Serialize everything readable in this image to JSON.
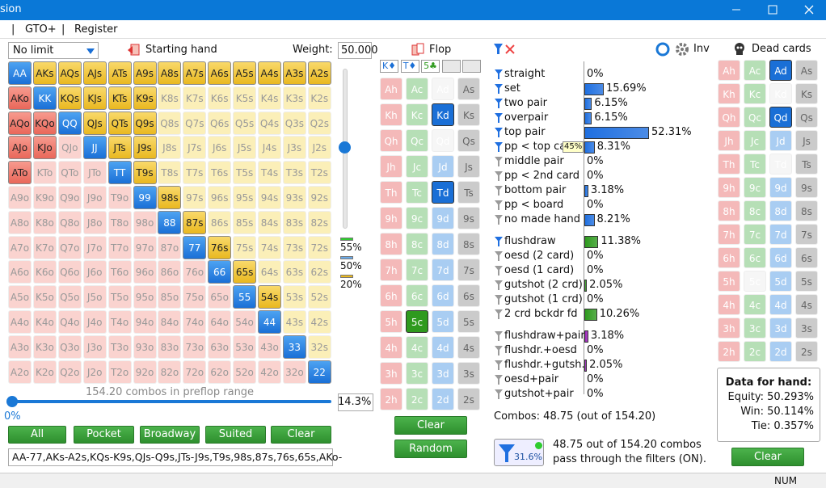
{
  "window": {
    "title": "sion"
  },
  "menu": [
    "|",
    "GTO+",
    "|",
    "Register"
  ],
  "starting_hand": {
    "game": "No limit",
    "title": "Starting hand",
    "weight_label": "Weight:",
    "weight": "50.000",
    "hands": [
      [
        "AA",
        "AKs",
        "AQs",
        "AJs",
        "ATs",
        "A9s",
        "A8s",
        "A7s",
        "A6s",
        "A5s",
        "A4s",
        "A3s",
        "A2s"
      ],
      [
        "AKo",
        "KK",
        "KQs",
        "KJs",
        "KTs",
        "K9s",
        "K8s",
        "K7s",
        "K6s",
        "K5s",
        "K4s",
        "K3s",
        "K2s"
      ],
      [
        "AQo",
        "KQo",
        "QQ",
        "QJs",
        "QTs",
        "Q9s",
        "Q8s",
        "Q7s",
        "Q6s",
        "Q5s",
        "Q4s",
        "Q3s",
        "Q2s"
      ],
      [
        "AJo",
        "KJo",
        "QJo",
        "JJ",
        "JTs",
        "J9s",
        "J8s",
        "J7s",
        "J6s",
        "J5s",
        "J4s",
        "J3s",
        "J2s"
      ],
      [
        "ATo",
        "KTo",
        "QTo",
        "JTo",
        "TT",
        "T9s",
        "T8s",
        "T7s",
        "T6s",
        "T5s",
        "T4s",
        "T3s",
        "T2s"
      ],
      [
        "A9o",
        "K9o",
        "Q9o",
        "J9o",
        "T9o",
        "99",
        "98s",
        "97s",
        "96s",
        "95s",
        "94s",
        "93s",
        "92s"
      ],
      [
        "A8o",
        "K8o",
        "Q8o",
        "J8o",
        "T8o",
        "98o",
        "88",
        "87s",
        "86s",
        "85s",
        "84s",
        "83s",
        "82s"
      ],
      [
        "A7o",
        "K7o",
        "Q7o",
        "J7o",
        "T7o",
        "97o",
        "87o",
        "77",
        "76s",
        "75s",
        "74s",
        "73s",
        "72s"
      ],
      [
        "A6o",
        "K6o",
        "Q6o",
        "J6o",
        "T6o",
        "96o",
        "86o",
        "76o",
        "66",
        "65s",
        "64s",
        "63s",
        "62s"
      ],
      [
        "A5o",
        "K5o",
        "Q5o",
        "J5o",
        "T5o",
        "95o",
        "85o",
        "75o",
        "65o",
        "55",
        "54s",
        "53s",
        "52s"
      ],
      [
        "A4o",
        "K4o",
        "Q4o",
        "J4o",
        "T4o",
        "94o",
        "84o",
        "74o",
        "64o",
        "54o",
        "44",
        "43s",
        "42s"
      ],
      [
        "A3o",
        "K3o",
        "Q3o",
        "J3o",
        "T3o",
        "93o",
        "83o",
        "73o",
        "63o",
        "53o",
        "43o",
        "33",
        "32s"
      ],
      [
        "A2o",
        "K2o",
        "Q2o",
        "J2o",
        "T2o",
        "92o",
        "82o",
        "72o",
        "62o",
        "52o",
        "42o",
        "32o",
        "22"
      ]
    ],
    "selected": [
      "1111111111111",
      "1111110000000",
      "1111110000000",
      "1101110000000",
      "1000110000000",
      "0000011000000",
      "0000001100000",
      "0000000110000",
      "0000000011000",
      "0000000001100",
      "0000000000100",
      "0000000000010",
      "0000000000001"
    ],
    "combos_text": "154.20 combos in preflop range",
    "slider_min": "0%",
    "slider_value": "14.3%",
    "buttons": [
      "All",
      "Pocket",
      "Broadway",
      "Suited",
      "Clear"
    ],
    "range_text": "AA-77,AKs-A2s,KQs-K9s,QJs-Q9s,JTs-J9s,T9s,98s,87s,76s,65s,AKo-",
    "weight_legend": [
      "55%",
      "50%",
      "20%"
    ]
  },
  "deck": [
    [
      "Ah",
      "Ac",
      "Ad",
      "As"
    ],
    [
      "Kh",
      "Kc",
      "Kd",
      "Ks"
    ],
    [
      "Qh",
      "Qc",
      "Qd",
      "Qs"
    ],
    [
      "Jh",
      "Jc",
      "Jd",
      "Js"
    ],
    [
      "Th",
      "Tc",
      "Td",
      "Ts"
    ],
    [
      "9h",
      "9c",
      "9d",
      "9s"
    ],
    [
      "8h",
      "8c",
      "8d",
      "8s"
    ],
    [
      "7h",
      "7c",
      "7d",
      "7s"
    ],
    [
      "6h",
      "6c",
      "6d",
      "6s"
    ],
    [
      "5h",
      "5c",
      "5d",
      "5s"
    ],
    [
      "4h",
      "4c",
      "4d",
      "4s"
    ],
    [
      "3h",
      "3c",
      "3d",
      "3s"
    ],
    [
      "2h",
      "2c",
      "2d",
      "2s"
    ]
  ],
  "flop": {
    "title": "Flop",
    "board": [
      "K♦",
      "T♦",
      "5♣"
    ],
    "state": [
      "nnxn",
      "nnsn",
      "nnxn",
      "nnnn",
      "nnsn",
      "nnnn",
      "nnnn",
      "nnnn",
      "nnnn",
      "nsnn",
      "nnnn",
      "nnnn",
      "nnnn"
    ],
    "buttons": [
      "Clear",
      "Random"
    ]
  },
  "filters": {
    "groups": [
      {
        "color": "#1f6fe0",
        "items": [
          {
            "name": "straight",
            "value": "0%",
            "pct": 0,
            "active": true
          },
          {
            "name": "set",
            "value": "15.69%",
            "pct": 15.69,
            "active": true
          },
          {
            "name": "two pair",
            "value": "6.15%",
            "pct": 6.15,
            "active": true
          },
          {
            "name": "overpair",
            "value": "6.15%",
            "pct": 6.15,
            "active": true
          },
          {
            "name": "top pair",
            "value": "52.31%",
            "pct": 52.31,
            "active": true
          },
          {
            "name": "pp < top car",
            "value": "8.31%",
            "pct": 8.31,
            "active": true,
            "badge": "45%"
          },
          {
            "name": "middle pair",
            "value": "0%",
            "pct": 0,
            "active": false
          },
          {
            "name": "pp < 2nd card",
            "value": "0%",
            "pct": 0,
            "active": false
          },
          {
            "name": "bottom pair",
            "value": "3.18%",
            "pct": 3.18,
            "active": false
          },
          {
            "name": "pp < board",
            "value": "0%",
            "pct": 0,
            "active": false
          },
          {
            "name": "no made hand",
            "value": "8.21%",
            "pct": 8.21,
            "active": false
          }
        ]
      },
      {
        "color": "#2e9a1e",
        "items": [
          {
            "name": "flushdraw",
            "value": "11.38%",
            "pct": 11.38,
            "active": true
          },
          {
            "name": "oesd (2 card)",
            "value": "0%",
            "pct": 0,
            "active": false
          },
          {
            "name": "oesd (1 card)",
            "value": "0%",
            "pct": 0,
            "active": false
          },
          {
            "name": "gutshot (2 crd)",
            "value": "2.05%",
            "pct": 2.05,
            "active": false
          },
          {
            "name": "gutshot (1 crd)",
            "value": "0%",
            "pct": 0,
            "active": false
          },
          {
            "name": "2 crd bckdr fd",
            "value": "10.26%",
            "pct": 10.26,
            "active": false
          }
        ]
      },
      {
        "color": "#9a22b8",
        "items": [
          {
            "name": "flushdraw+pair",
            "value": "3.18%",
            "pct": 3.18,
            "active": false
          },
          {
            "name": "flushdr.+oesd",
            "value": "0%",
            "pct": 0,
            "active": false
          },
          {
            "name": "flushdr.+gutsh.",
            "value": "2.05%",
            "pct": 2.05,
            "active": false
          },
          {
            "name": "oesd+pair",
            "value": "0%",
            "pct": 0,
            "active": false
          },
          {
            "name": "gutshot+pair",
            "value": "0%",
            "pct": 0,
            "active": false
          }
        ]
      }
    ],
    "combos": "Combos: 48.75 (out of 154.20)",
    "filter_pct": "31.6%",
    "pass_text": [
      "48.75 out of 154.20 combos",
      "pass through the filters (ON)."
    ]
  },
  "toolbar": {
    "inv": "Inv"
  },
  "dead_cards": {
    "title": "Dead cards",
    "state": [
      "nnsn",
      "nnxn",
      "nnsn",
      "nnnn",
      "nnxn",
      "nnnn",
      "nnnn",
      "nnnn",
      "nnnn",
      "nxnn",
      "nnnn",
      "nnnn",
      "nnnn"
    ],
    "data": {
      "title": "Data for hand:",
      "lines": [
        "Equity: 50.293%",
        "Win: 50.114%",
        "Tie: 0.357%"
      ]
    },
    "button": "Clear"
  },
  "status": "NUM"
}
